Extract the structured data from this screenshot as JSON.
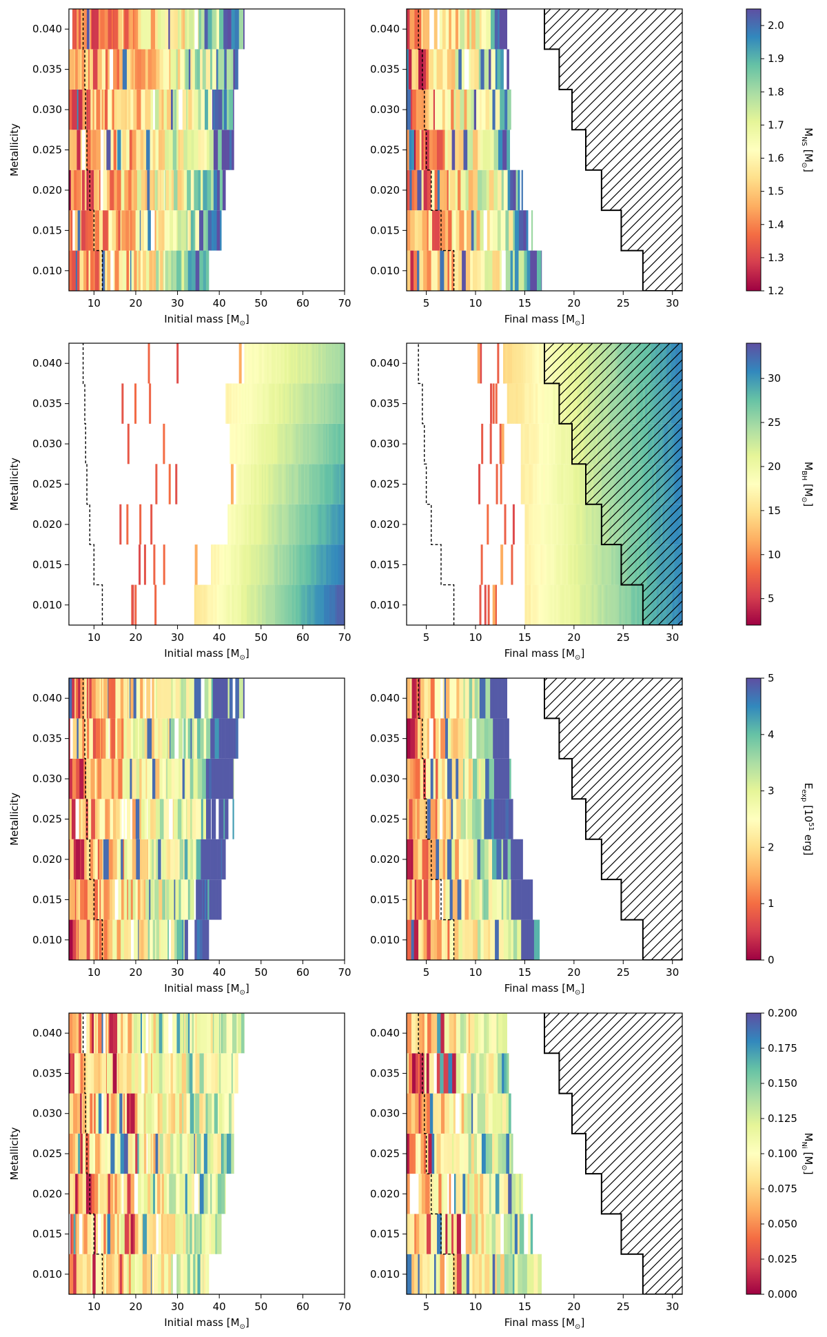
{
  "figure": {
    "colors": {
      "frame": "#000000",
      "dash": "#000000",
      "hatch": "#000000"
    },
    "colormap": {
      "name": "Spectral",
      "stops": [
        "#9e0142",
        "#d53e4f",
        "#f46d43",
        "#fdae61",
        "#fee08b",
        "#ffffbf",
        "#e6f598",
        "#abdda4",
        "#66c2a5",
        "#3288bd",
        "#5e4fa2"
      ]
    }
  },
  "chart_data": [
    {
      "type": "heatmap",
      "row": 1,
      "column": 1,
      "xlabel": "Initial mass [M",
      "xlabel_sub": "⊙",
      "xlabel_end": "]",
      "ylabel": "Metallicity",
      "xlim": [
        4,
        70
      ],
      "ylim": [
        0.0075,
        0.0425
      ],
      "xticks": [
        "10",
        "20",
        "30",
        "40",
        "50",
        "60",
        "70"
      ],
      "yticks": [
        "0.010",
        "0.015",
        "0.020",
        "0.025",
        "0.030",
        "0.035",
        "0.040"
      ],
      "quantity": "mns",
      "metallicity_rows": [
        0.01,
        0.015,
        0.02,
        0.025,
        0.03,
        0.035,
        0.04
      ],
      "colored_range_x": [
        [
          4,
          37.5
        ],
        [
          4,
          40.5
        ],
        [
          4,
          41.5
        ],
        [
          4,
          43.5
        ],
        [
          4,
          43.5
        ],
        [
          4,
          44.5
        ],
        [
          4,
          46
        ]
      ],
      "dashed_line_x": [
        12,
        10,
        9,
        8.3,
        8,
        7.8,
        7.4
      ]
    },
    {
      "type": "heatmap",
      "row": 1,
      "column": 2,
      "xlabel": "Final mass [M",
      "xlabel_sub": "⊙",
      "xlabel_end": "]",
      "ylabel": "",
      "xlim": [
        3,
        31
      ],
      "ylim": [
        0.0075,
        0.0425
      ],
      "xticks": [
        "5",
        "10",
        "15",
        "20",
        "25",
        "30"
      ],
      "yticks": [
        "0.010",
        "0.015",
        "0.020",
        "0.025",
        "0.030",
        "0.035",
        "0.040"
      ],
      "quantity": "mns",
      "metallicity_rows": [
        0.01,
        0.015,
        0.02,
        0.025,
        0.03,
        0.035,
        0.04
      ],
      "colored_range_x": [
        [
          3,
          16.7
        ],
        [
          3,
          15.8
        ],
        [
          3,
          14.8
        ],
        [
          3,
          13.8
        ],
        [
          3,
          13.6
        ],
        [
          3,
          13.4
        ],
        [
          3,
          13.2
        ]
      ],
      "dashed_line_x": [
        7.8,
        6.5,
        5.5,
        5,
        4.8,
        4.6,
        4.2
      ],
      "hatched_region_left_x": [
        27,
        24.8,
        22.8,
        21.2,
        19.8,
        18.5,
        17
      ]
    },
    {
      "type": "colorbar",
      "row": 1,
      "label": "M",
      "label_sub": "NS",
      "label_end": " [M",
      "label_sub2": "⊙",
      "label_end2": "]",
      "range": [
        1.2,
        2.05
      ],
      "ticks": [
        "1.2",
        "1.3",
        "1.4",
        "1.5",
        "1.6",
        "1.7",
        "1.8",
        "1.9",
        "2.0"
      ]
    },
    {
      "type": "heatmap",
      "row": 2,
      "column": 1,
      "xlabel": "Initial mass [M",
      "xlabel_sub": "⊙",
      "xlabel_end": "]",
      "ylabel": "Metallicity",
      "xlim": [
        4,
        70
      ],
      "ylim": [
        0.0075,
        0.0425
      ],
      "xticks": [
        "10",
        "20",
        "30",
        "40",
        "50",
        "60",
        "70"
      ],
      "yticks": [
        "0.010",
        "0.015",
        "0.020",
        "0.025",
        "0.030",
        "0.035",
        "0.040"
      ],
      "quantity": "mbh",
      "metallicity_rows": [
        0.01,
        0.015,
        0.02,
        0.025,
        0.03,
        0.035,
        0.04
      ],
      "continuous_start_x": [
        34,
        38,
        42,
        44,
        42.5,
        41.5,
        46
      ],
      "dashed_line_x": [
        12,
        10,
        9,
        8.3,
        8,
        7.8,
        7.4
      ]
    },
    {
      "type": "heatmap",
      "row": 2,
      "column": 2,
      "xlabel": "Final mass [M",
      "xlabel_sub": "⊙",
      "xlabel_end": "]",
      "ylabel": "",
      "xlim": [
        3,
        31
      ],
      "ylim": [
        0.0075,
        0.0425
      ],
      "xticks": [
        "5",
        "10",
        "15",
        "20",
        "25",
        "30"
      ],
      "yticks": [
        "0.010",
        "0.015",
        "0.020",
        "0.025",
        "0.030",
        "0.035",
        "0.040"
      ],
      "quantity": "mbh",
      "metallicity_rows": [
        0.01,
        0.015,
        0.02,
        0.025,
        0.03,
        0.035,
        0.04
      ],
      "continuous_start_x": [
        15,
        15,
        15,
        14.6,
        14.6,
        13.2,
        12.8
      ],
      "dashed_line_x": [
        7.8,
        6.5,
        5.5,
        5,
        4.8,
        4.6,
        4.2
      ],
      "hatched_region_left_x": [
        27,
        24.8,
        22.8,
        21.2,
        19.8,
        18.5,
        17
      ]
    },
    {
      "type": "colorbar",
      "row": 2,
      "label": "M",
      "label_sub": "BH",
      "label_end": " [M",
      "label_sub2": "⊙",
      "label_end2": "]",
      "range": [
        2,
        34
      ],
      "ticks": [
        "5",
        "10",
        "15",
        "20",
        "25",
        "30"
      ]
    },
    {
      "type": "heatmap",
      "row": 3,
      "column": 1,
      "xlabel": "Initial mass [M",
      "xlabel_sub": "⊙",
      "xlabel_end": "]",
      "ylabel": "Metallicity",
      "xlim": [
        4,
        70
      ],
      "ylim": [
        0.0075,
        0.0425
      ],
      "xticks": [
        "10",
        "20",
        "30",
        "40",
        "50",
        "60",
        "70"
      ],
      "yticks": [
        "0.010",
        "0.015",
        "0.020",
        "0.025",
        "0.030",
        "0.035",
        "0.040"
      ],
      "quantity": "eexp",
      "metallicity_rows": [
        0.01,
        0.015,
        0.02,
        0.025,
        0.03,
        0.035,
        0.04
      ],
      "colored_range_x": [
        [
          4,
          37.5
        ],
        [
          4,
          40.5
        ],
        [
          4,
          41.5
        ],
        [
          4,
          43.5
        ],
        [
          4,
          43.5
        ],
        [
          4,
          44.5
        ],
        [
          4,
          46
        ]
      ],
      "dashed_line_x": [
        12,
        10,
        9,
        8.3,
        8,
        7.8,
        7.4
      ]
    },
    {
      "type": "heatmap",
      "row": 3,
      "column": 2,
      "xlabel": "Final mass [M",
      "xlabel_sub": "⊙",
      "xlabel_end": "]",
      "ylabel": "",
      "xlim": [
        3,
        31
      ],
      "ylim": [
        0.0075,
        0.0425
      ],
      "xticks": [
        "5",
        "10",
        "15",
        "20",
        "25",
        "30"
      ],
      "yticks": [
        "0.010",
        "0.015",
        "0.020",
        "0.025",
        "0.030",
        "0.035",
        "0.040"
      ],
      "quantity": "eexp",
      "metallicity_rows": [
        0.01,
        0.015,
        0.02,
        0.025,
        0.03,
        0.035,
        0.04
      ],
      "colored_range_x": [
        [
          3,
          16.7
        ],
        [
          3,
          15.8
        ],
        [
          3,
          14.8
        ],
        [
          3,
          13.8
        ],
        [
          3,
          13.6
        ],
        [
          3,
          13.4
        ],
        [
          3,
          13.2
        ]
      ],
      "dashed_line_x": [
        7.8,
        6.5,
        5.5,
        5,
        4.8,
        4.6,
        4.2
      ],
      "hatched_region_left_x": [
        27,
        24.8,
        22.8,
        21.2,
        19.8,
        18.5,
        17
      ]
    },
    {
      "type": "colorbar",
      "row": 3,
      "label": "E",
      "label_sub": "exp",
      "label_end": " [10",
      "label_sup": "51",
      "label_end2": " erg]",
      "range": [
        0,
        5
      ],
      "ticks": [
        "0",
        "1",
        "2",
        "3",
        "4",
        "5"
      ]
    },
    {
      "type": "heatmap",
      "row": 4,
      "column": 1,
      "xlabel": "Initial mass [M",
      "xlabel_sub": "⊙",
      "xlabel_end": "]",
      "ylabel": "Metallicity",
      "xlim": [
        4,
        70
      ],
      "ylim": [
        0.0075,
        0.0425
      ],
      "xticks": [
        "10",
        "20",
        "30",
        "40",
        "50",
        "60",
        "70"
      ],
      "yticks": [
        "0.010",
        "0.015",
        "0.020",
        "0.025",
        "0.030",
        "0.035",
        "0.040"
      ],
      "quantity": "mni",
      "metallicity_rows": [
        0.01,
        0.015,
        0.02,
        0.025,
        0.03,
        0.035,
        0.04
      ],
      "colored_range_x": [
        [
          4,
          37.5
        ],
        [
          4,
          40.5
        ],
        [
          4,
          41.5
        ],
        [
          4,
          43.5
        ],
        [
          4,
          43.5
        ],
        [
          4,
          44.5
        ],
        [
          4,
          46
        ]
      ],
      "dashed_line_x": [
        12,
        10,
        9,
        8.3,
        8,
        7.8,
        7.4
      ]
    },
    {
      "type": "heatmap",
      "row": 4,
      "column": 2,
      "xlabel": "Final mass [M",
      "xlabel_sub": "⊙",
      "xlabel_end": "]",
      "ylabel": "",
      "xlim": [
        3,
        31
      ],
      "ylim": [
        0.0075,
        0.0425
      ],
      "xticks": [
        "5",
        "10",
        "15",
        "20",
        "25",
        "30"
      ],
      "yticks": [
        "0.010",
        "0.015",
        "0.020",
        "0.025",
        "0.030",
        "0.035",
        "0.040"
      ],
      "quantity": "mni",
      "metallicity_rows": [
        0.01,
        0.015,
        0.02,
        0.025,
        0.03,
        0.035,
        0.04
      ],
      "colored_range_x": [
        [
          3,
          16.7
        ],
        [
          3,
          15.8
        ],
        [
          3,
          14.8
        ],
        [
          3,
          13.8
        ],
        [
          3,
          13.6
        ],
        [
          3,
          13.4
        ],
        [
          3,
          13.2
        ]
      ],
      "dashed_line_x": [
        7.8,
        6.5,
        5.5,
        5,
        4.8,
        4.6,
        4.2
      ],
      "hatched_region_left_x": [
        27,
        24.8,
        22.8,
        21.2,
        19.8,
        18.5,
        17
      ]
    },
    {
      "type": "colorbar",
      "row": 4,
      "label": "M",
      "label_sub": "Ni",
      "label_end": " [M",
      "label_sub2": "⊙",
      "label_end2": "]",
      "range": [
        0,
        0.2
      ],
      "ticks": [
        "0.000",
        "0.025",
        "0.050",
        "0.075",
        "0.100",
        "0.125",
        "0.150",
        "0.175",
        "0.200"
      ]
    }
  ]
}
